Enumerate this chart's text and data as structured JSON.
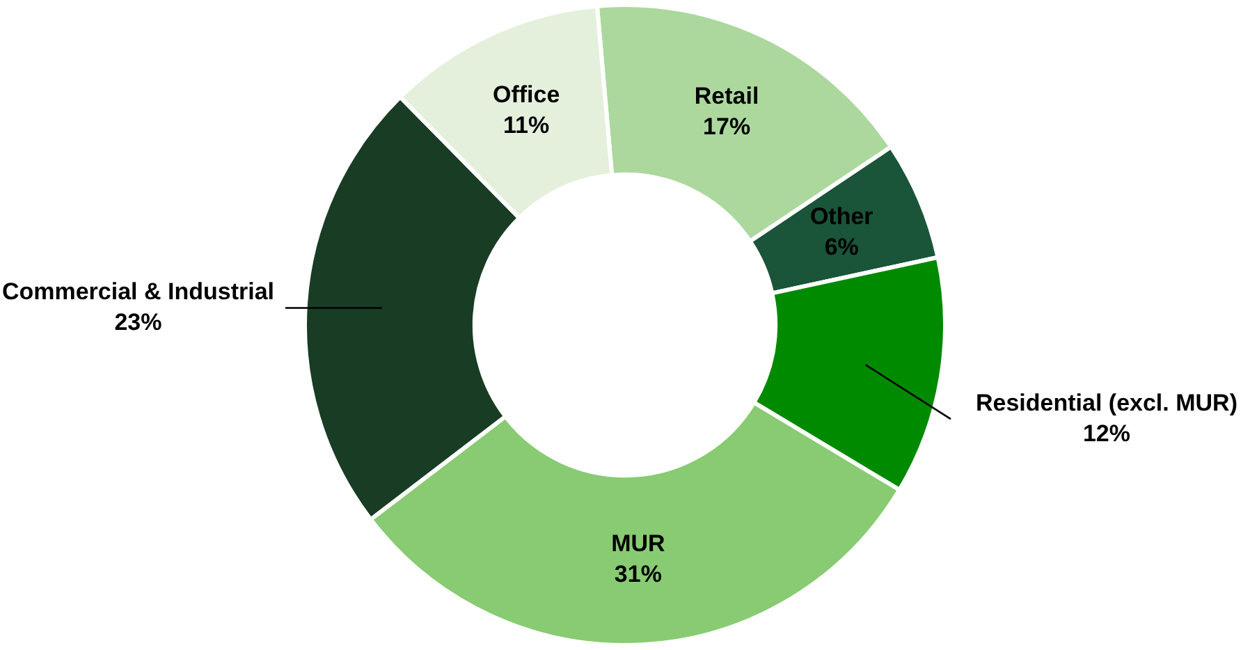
{
  "chart_data": {
    "type": "donut",
    "categories": [
      "Retail",
      "Other",
      "Residential (excl. MUR)",
      "MUR",
      "Commercial & Industrial",
      "Office"
    ],
    "values": [
      17,
      6,
      12,
      31,
      23,
      11
    ],
    "colors": [
      "#acd89e",
      "#1a5439",
      "#008a00",
      "#88cb72",
      "#183c24",
      "#e4f0dc"
    ],
    "value_labels": [
      "17%",
      "6%",
      "12%",
      "31%",
      "23%",
      "11%"
    ]
  }
}
